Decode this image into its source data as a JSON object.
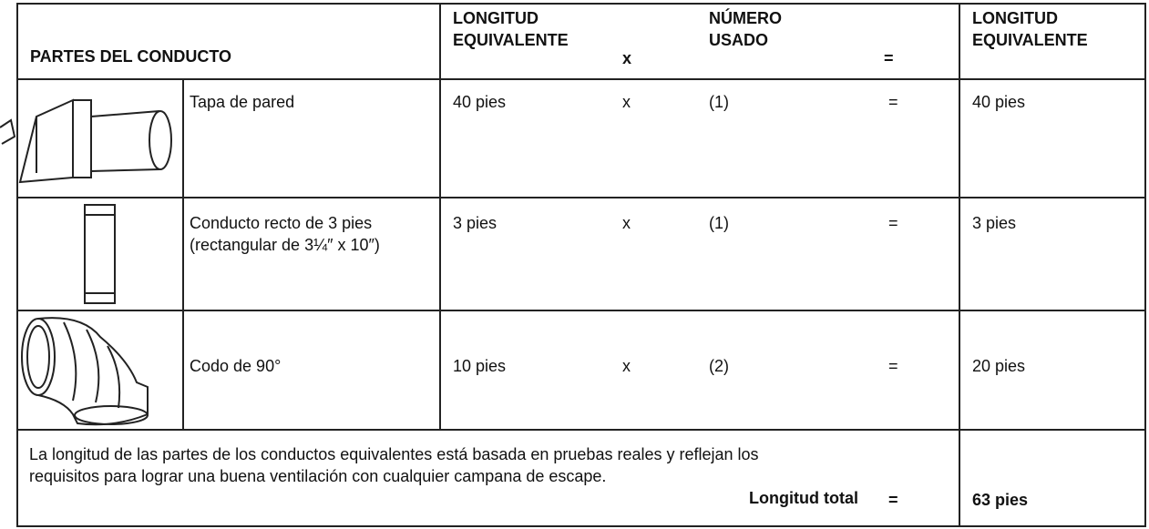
{
  "header": {
    "parts": "PARTES DEL CONDUCTO",
    "length": "LONGITUD EQUIVALENTE",
    "times": "x",
    "count": "NÚMERO USADO",
    "equals": "=",
    "total": "LONGITUD EQUIVALENTE"
  },
  "rows": [
    {
      "name": "Tapa de pared",
      "length": "40 pies",
      "times": "x",
      "count": "(1)",
      "equals": "=",
      "total": "40 pies"
    },
    {
      "name": "Conducto recto de 3 pies (rectangular de 3¼″ x 10″)",
      "length": "3 pies",
      "times": "x",
      "count": "(1)",
      "equals": "=",
      "total": "3 pies"
    },
    {
      "name": "Codo de 90°",
      "length": "10 pies",
      "times": "x",
      "count": "(2)",
      "equals": "=",
      "total": "20 pies"
    }
  ],
  "footer": {
    "note": "La longitud de las partes de los conductos equivalentes está basada en pruebas reales y reflejan los requisitos para lograr una buena ventilación con cualquier campana de escape.",
    "total_label": "Longitud total",
    "equals": "=",
    "total": "63 pies"
  }
}
